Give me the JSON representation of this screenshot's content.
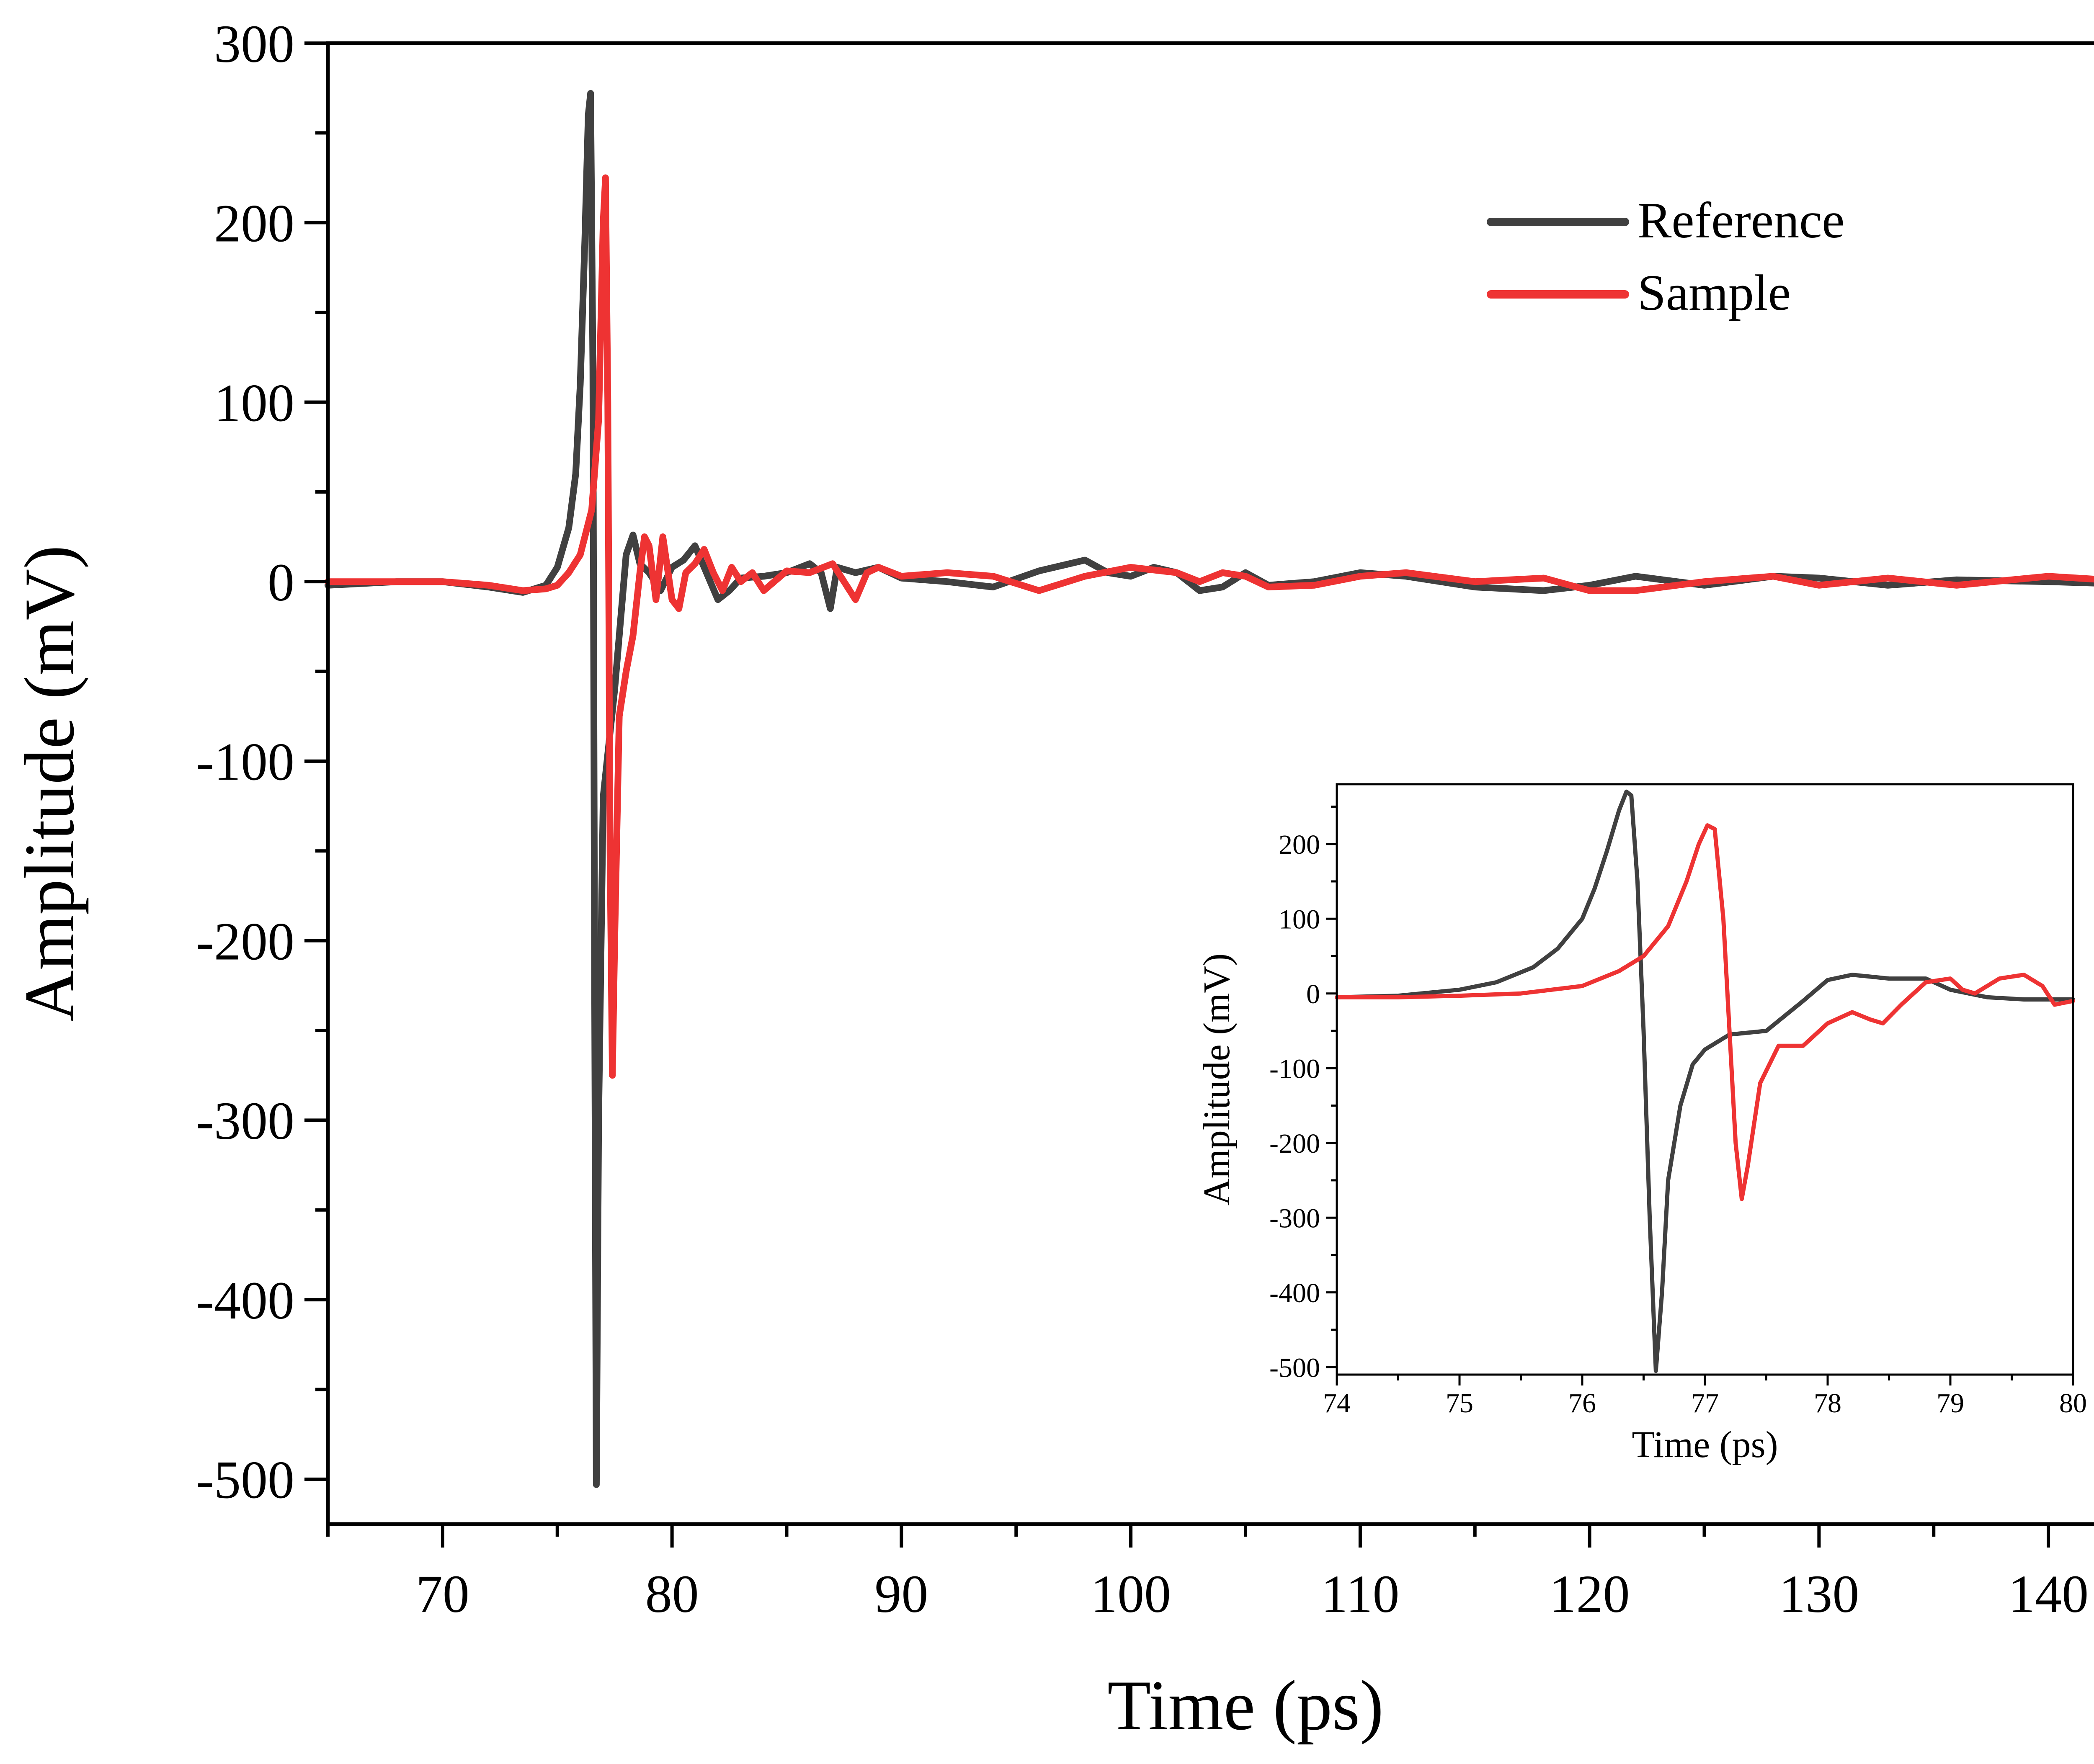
{
  "chart_data": [
    {
      "type": "line",
      "xlabel": "Time (ps)",
      "ylabel": "Amplitude (mV)",
      "xlim": [
        65,
        145
      ],
      "ylim": [
        -525,
        300
      ],
      "xticks": [
        70,
        80,
        90,
        100,
        110,
        120,
        130,
        140
      ],
      "yticks": [
        300,
        200,
        100,
        0,
        -100,
        -200,
        -300,
        -400,
        -500
      ],
      "ytick_labels": [
        "300",
        "200",
        "100",
        "0",
        "-100",
        "-200",
        "-300",
        "-400",
        "-500"
      ],
      "legend_position": "top-right",
      "grid": false,
      "series": [
        {
          "name": "Reference",
          "color": "#404040",
          "x": [
            65,
            68,
            70,
            72,
            73.5,
            74.5,
            75,
            75.5,
            75.8,
            76,
            76.2,
            76.35,
            76.45,
            76.55,
            76.62,
            76.7,
            76.8,
            77,
            77.5,
            78,
            78.3,
            78.6,
            79,
            79.5,
            80,
            80.5,
            81,
            81.5,
            82,
            82.5,
            83,
            84,
            85,
            86,
            86.5,
            86.9,
            87.2,
            88,
            89,
            90,
            92,
            94,
            96,
            98,
            99,
            100,
            101,
            102,
            103,
            104,
            105,
            106,
            108,
            110,
            112,
            115,
            118,
            120,
            122,
            125,
            128,
            130,
            133,
            136,
            140,
            145
          ],
          "y": [
            -2,
            0,
            0,
            -3,
            -6,
            -2,
            8,
            30,
            60,
            110,
            190,
            260,
            272,
            120,
            -200,
            -503,
            -300,
            -120,
            -60,
            15,
            26,
            10,
            5,
            -5,
            8,
            12,
            20,
            5,
            -10,
            -5,
            2,
            3,
            5,
            10,
            5,
            -15,
            8,
            5,
            8,
            2,
            0,
            -3,
            6,
            12,
            5,
            3,
            8,
            5,
            -5,
            -3,
            5,
            -2,
            0,
            5,
            3,
            -3,
            -5,
            -2,
            3,
            -2,
            3,
            2,
            -2,
            1,
            0,
            -2
          ]
        },
        {
          "name": "Sample",
          "color": "#ee3333",
          "x": [
            65,
            68,
            70,
            72,
            73.5,
            74.5,
            75,
            75.5,
            76,
            76.5,
            76.8,
            77,
            77.1,
            77.2,
            77.3,
            77.4,
            77.5,
            77.7,
            78,
            78.3,
            78.6,
            78.8,
            79,
            79.3,
            79.6,
            80,
            80.3,
            80.6,
            81,
            81.4,
            81.8,
            82.2,
            82.6,
            83,
            83.5,
            84,
            85,
            86,
            87,
            87.5,
            88,
            88.5,
            89,
            90,
            92,
            94,
            96,
            98,
            100,
            102,
            103,
            104,
            105,
            106,
            108,
            110,
            112,
            115,
            118,
            120,
            122,
            125,
            128,
            130,
            133,
            136,
            140,
            145
          ],
          "y": [
            0,
            0,
            0,
            -2,
            -5,
            -4,
            -2,
            5,
            15,
            40,
            90,
            200,
            225,
            100,
            -150,
            -275,
            -200,
            -75,
            -50,
            -30,
            5,
            25,
            20,
            -10,
            25,
            -10,
            -15,
            5,
            10,
            18,
            5,
            -5,
            8,
            0,
            5,
            -5,
            6,
            5,
            10,
            0,
            -10,
            5,
            8,
            3,
            5,
            3,
            -5,
            3,
            8,
            5,
            0,
            5,
            3,
            -3,
            -2,
            3,
            5,
            0,
            2,
            -5,
            -5,
            0,
            3,
            -2,
            2,
            -2,
            3,
            -1
          ]
        }
      ]
    },
    {
      "type": "line",
      "xlabel": "Time (ps)",
      "ylabel": "Amplitude (mV)",
      "xlim": [
        74,
        80
      ],
      "ylim": [
        -510,
        280
      ],
      "xticks": [
        74,
        75,
        76,
        77,
        78,
        79,
        80
      ],
      "yticks": [
        200,
        100,
        0,
        -100,
        -200,
        -300,
        -400,
        -500
      ],
      "ytick_labels": [
        "200",
        "100",
        "0",
        "-100",
        "-200",
        "-300",
        "-400",
        "-500"
      ],
      "grid": false,
      "series": [
        {
          "name": "Reference",
          "color": "#404040",
          "x": [
            74,
            74.5,
            75,
            75.3,
            75.6,
            75.8,
            76,
            76.1,
            76.2,
            76.3,
            76.36,
            76.4,
            76.45,
            76.5,
            76.55,
            76.6,
            76.65,
            76.7,
            76.8,
            76.9,
            77,
            77.2,
            77.5,
            77.8,
            78,
            78.2,
            78.5,
            78.8,
            79,
            79.3,
            79.6,
            80
          ],
          "y": [
            -5,
            -3,
            5,
            15,
            35,
            60,
            100,
            140,
            190,
            245,
            270,
            265,
            150,
            -50,
            -300,
            -505,
            -400,
            -250,
            -150,
            -95,
            -75,
            -55,
            -50,
            -10,
            18,
            25,
            20,
            20,
            5,
            -5,
            -8,
            -8
          ]
        },
        {
          "name": "Sample",
          "color": "#ee3333",
          "x": [
            74,
            74.5,
            75,
            75.5,
            76,
            76.3,
            76.5,
            76.7,
            76.85,
            76.95,
            77.02,
            77.08,
            77.15,
            77.2,
            77.25,
            77.3,
            77.35,
            77.45,
            77.6,
            77.8,
            78,
            78.2,
            78.35,
            78.45,
            78.6,
            78.8,
            79,
            79.1,
            79.2,
            79.4,
            79.6,
            79.75,
            79.85,
            80
          ],
          "y": [
            -5,
            -5,
            -3,
            0,
            10,
            30,
            50,
            90,
            150,
            200,
            225,
            220,
            100,
            -50,
            -200,
            -275,
            -230,
            -120,
            -70,
            -70,
            -40,
            -25,
            -35,
            -40,
            -15,
            15,
            20,
            5,
            0,
            20,
            25,
            10,
            -15,
            -10
          ]
        }
      ]
    }
  ]
}
